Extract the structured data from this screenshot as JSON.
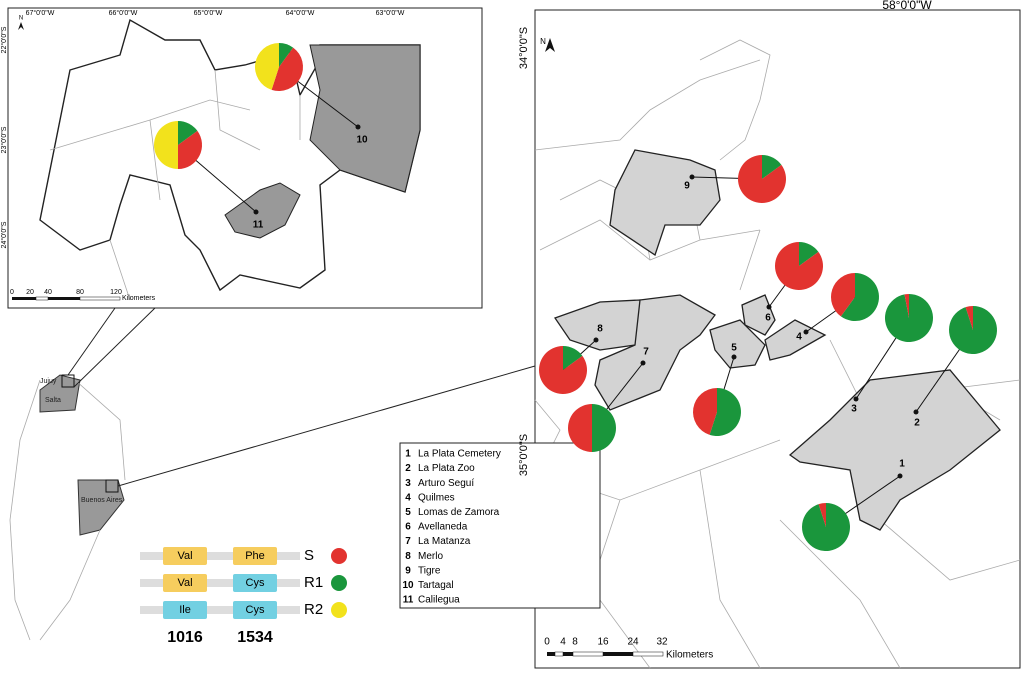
{
  "north_inset": {
    "north": "N",
    "lon_labels": [
      "67°0'0\"W",
      "66°0'0\"W",
      "65°0'0\"W",
      "64°0'0\"W",
      "63°0'0\"W"
    ],
    "lat_labels": [
      "22°0'0\"S",
      "23°0'0\"S",
      "24°0'0\"S"
    ],
    "scale_labels": [
      "0",
      "20",
      "40",
      "80",
      "120"
    ],
    "scale_unit": "Kilometers"
  },
  "main_map": {
    "north": "N",
    "lon_label": "58°0'0\"W",
    "lat_labels": [
      "34°0'0\"S",
      "35°0'0\"S"
    ],
    "scale_labels": [
      "0",
      "4",
      "8",
      "16",
      "24",
      "32"
    ],
    "scale_unit": "Kilometers"
  },
  "overview": {
    "labels": [
      "Jujuy",
      "Salta",
      "Buenos Aires"
    ]
  },
  "legend": {
    "items": [
      {
        "number": "1",
        "name": "La Plata Cemetery"
      },
      {
        "number": "2",
        "name": "La Plata Zoo"
      },
      {
        "number": "3",
        "name": "Arturo Seguí"
      },
      {
        "number": "4",
        "name": "Quilmes"
      },
      {
        "number": "5",
        "name": "Lomas de Zamora"
      },
      {
        "number": "6",
        "name": "Avellaneda"
      },
      {
        "number": "7",
        "name": "La Matanza"
      },
      {
        "number": "8",
        "name": "Merlo"
      },
      {
        "number": "9",
        "name": "Tigre"
      },
      {
        "number": "10",
        "name": "Tartagal"
      },
      {
        "number": "11",
        "name": "Calilegua"
      }
    ]
  },
  "genotypes": {
    "positions": [
      "1016",
      "1534"
    ],
    "amino_colors": {
      "Val": "#f6cd5e",
      "Phe": "#f6cd5e",
      "Cys": "#72d0e2",
      "Ile": "#72d0e2"
    },
    "rows": [
      {
        "residues": [
          "Val",
          "Phe"
        ],
        "label": "S",
        "color": "#e2332f"
      },
      {
        "residues": [
          "Val",
          "Cys"
        ],
        "label": "R1",
        "color": "#1a963c"
      },
      {
        "residues": [
          "Ile",
          "Cys"
        ],
        "label": "R2",
        "color": "#f2e21c"
      }
    ]
  },
  "sites": [
    {
      "label": "1",
      "values": [
        5,
        95,
        0
      ]
    },
    {
      "label": "2",
      "values": [
        5,
        95,
        0
      ]
    },
    {
      "label": "3",
      "values": [
        3,
        97,
        0
      ]
    },
    {
      "label": "4",
      "values": [
        40,
        60,
        0
      ]
    },
    {
      "label": "5",
      "values": [
        45,
        55,
        0
      ]
    },
    {
      "label": "6",
      "values": [
        85,
        15,
        0
      ]
    },
    {
      "label": "7",
      "values": [
        50,
        50,
        0
      ]
    },
    {
      "label": "8",
      "values": [
        85,
        15,
        0
      ]
    },
    {
      "label": "9",
      "values": [
        85,
        15,
        0
      ]
    },
    {
      "label": "10",
      "values": [
        45,
        10,
        45
      ]
    },
    {
      "label": "11",
      "values": [
        35,
        15,
        50
      ]
    }
  ]
}
